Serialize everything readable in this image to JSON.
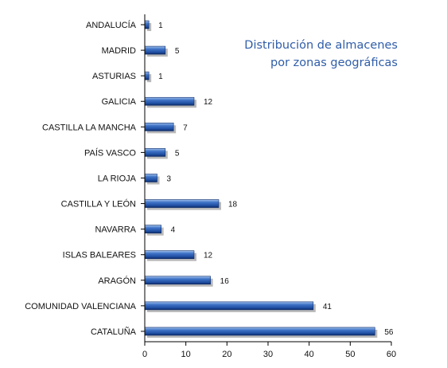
{
  "chart_data": {
    "type": "bar",
    "orientation": "horizontal",
    "title_lines": [
      "Distribución de almacenes",
      "por zonas geográficas"
    ],
    "categories": [
      "ANDALUCÍA",
      "MADRID",
      "ASTURIAS",
      "GALICIA",
      "CASTILLA LA MANCHA",
      "PAÍS VASCO",
      "LA RIOJA",
      "CASTILLA Y LEÓN",
      "NAVARRA",
      "ISLAS BALEARES",
      "ARAGÓN",
      "COMUNIDAD VALENCIANA",
      "CATALUÑA"
    ],
    "values": [
      1,
      5,
      1,
      12,
      7,
      5,
      3,
      18,
      4,
      12,
      16,
      41,
      56
    ],
    "value_labels": [
      "1",
      "5",
      "1",
      "12",
      "7",
      "5",
      "3",
      "18",
      "4",
      "12",
      "16",
      "41",
      "56"
    ],
    "xlim": [
      0,
      60
    ],
    "x_ticks": [
      0,
      10,
      20,
      30,
      40,
      50,
      60
    ],
    "x_tick_labels": [
      "0",
      "10",
      "20",
      "30",
      "40",
      "50",
      "60"
    ],
    "grid": false,
    "legend": "none",
    "bar_color": "#1f4fa3"
  }
}
